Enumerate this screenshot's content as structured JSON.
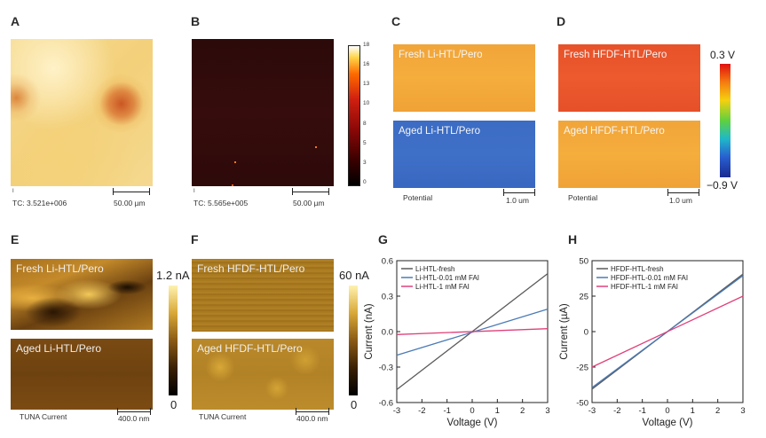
{
  "panels": {
    "A": {
      "label": "A",
      "tc": "TC: 3.521e+006",
      "scale": "50.00 µm"
    },
    "B": {
      "label": "B",
      "tc": "TC: 5.565e+005",
      "scale": "50.00 µm",
      "colorbar_ticks": [
        "18",
        "16",
        "13",
        "10",
        "8",
        "5",
        "3",
        "0"
      ]
    },
    "C": {
      "label": "C",
      "fresh": "Fresh Li-HTL/Pero",
      "aged": "Aged Li-HTL/Pero",
      "caption": "Potential",
      "scale": "1.0 um"
    },
    "D": {
      "label": "D",
      "fresh": "Fresh HFDF-HTL/Pero",
      "aged": "Aged HFDF-HTL/Pero",
      "caption": "Potential",
      "scale": "1.0 um",
      "cbar_max": "0.3 V",
      "cbar_min": "−0.9 V"
    },
    "E": {
      "label": "E",
      "fresh": "Fresh Li-HTL/Pero",
      "aged": "Aged Li-HTL/Pero",
      "caption": "TUNA Current",
      "scale": "400.0 nm",
      "cbar_max": "1.2 nA",
      "cbar_min": "0"
    },
    "F": {
      "label": "F",
      "fresh": "Fresh HFDF-HTL/Pero",
      "aged": "Aged HFDF-HTL/Pero",
      "caption": "TUNA Current",
      "scale": "400.0 nm",
      "cbar_max": "60 nA",
      "cbar_min": "0"
    },
    "G": {
      "label": "G"
    },
    "H": {
      "label": "H"
    }
  },
  "colors": {
    "li_fresh": "#5a5a5a",
    "li_001": "#4a7ab5",
    "li_1": "#e0407a"
  },
  "chart_data": [
    {
      "id": "G",
      "type": "line",
      "title": "",
      "xlabel": "Voltage (V)",
      "ylabel": "Current (nA)",
      "xlim": [
        -3,
        3
      ],
      "ylim": [
        -0.6,
        0.6
      ],
      "xticks": [
        -3,
        -2,
        -1,
        0,
        1,
        2,
        3
      ],
      "yticks": [
        0.6,
        0.3,
        0.0,
        -0.3,
        -0.6
      ],
      "ytick_labels": [
        "0.6",
        "0.3",
        "0.0",
        "-0.3",
        "-0.6"
      ],
      "legend_position": "top-left",
      "series": [
        {
          "name": "Li-HTL-fresh",
          "color": "#5a5a5a",
          "x": [
            -3,
            3
          ],
          "values": [
            -0.49,
            0.49
          ]
        },
        {
          "name": "Li-HTL-0.01 mM FAI",
          "color": "#4a7ab5",
          "x": [
            -3,
            3
          ],
          "values": [
            -0.2,
            0.19
          ]
        },
        {
          "name": "Li-HTL-1 mM FAI",
          "color": "#e0407a",
          "x": [
            -3,
            3
          ],
          "values": [
            -0.025,
            0.025
          ]
        }
      ]
    },
    {
      "id": "H",
      "type": "line",
      "title": "",
      "xlabel": "Voltage (V)",
      "ylabel": "Current (µA)",
      "xlim": [
        -3,
        3
      ],
      "ylim": [
        -50,
        50
      ],
      "xticks": [
        -3,
        -2,
        -1,
        0,
        1,
        2,
        3
      ],
      "yticks": [
        50,
        25,
        0,
        -25,
        -50
      ],
      "ytick_labels": [
        "50",
        "25",
        "0",
        "-25",
        "-50"
      ],
      "legend_position": "top-left",
      "series": [
        {
          "name": "HFDF-HTL-fresh",
          "color": "#5a5a5a",
          "x": [
            -3,
            3
          ],
          "values": [
            -40.5,
            40.5
          ]
        },
        {
          "name": "HFDF-HTL-0.01 mM FAI",
          "color": "#4a7ab5",
          "x": [
            -3,
            3
          ],
          "values": [
            -39.5,
            39.5
          ]
        },
        {
          "name": "HFDF-HTL-1 mM FAI",
          "color": "#e0407a",
          "x": [
            -3,
            3
          ],
          "values": [
            -25,
            25
          ]
        }
      ]
    }
  ]
}
